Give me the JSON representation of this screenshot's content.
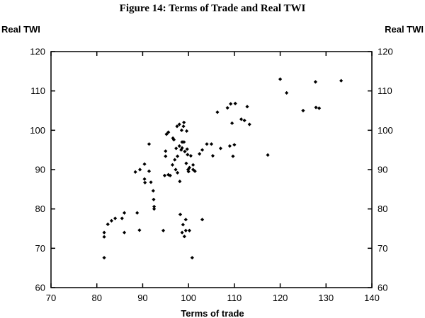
{
  "chart_data": {
    "type": "scatter",
    "title": "Figure 14: Terms of Trade and Real TWI",
    "xlabel": "Terms of trade",
    "ylabel_left": "Real TWI",
    "ylabel_right": "Real TWI",
    "xlim": [
      70,
      140
    ],
    "ylim": [
      60,
      120
    ],
    "xticks": [
      "70",
      "80",
      "90",
      "100",
      "110",
      "120",
      "130",
      "140"
    ],
    "yticks": [
      "120",
      "110",
      "100",
      "90",
      "80",
      "70",
      "60"
    ],
    "grid": false,
    "marker": "diamond",
    "point_color": "#000000",
    "points": [
      [
        81.6,
        67.6
      ],
      [
        81.6,
        72.9
      ],
      [
        81.6,
        74.0
      ],
      [
        82.4,
        76.1
      ],
      [
        83.2,
        77.0
      ],
      [
        84.0,
        77.6
      ],
      [
        85.5,
        77.6
      ],
      [
        86.0,
        79.0
      ],
      [
        86.0,
        74.0
      ],
      [
        88.4,
        89.4
      ],
      [
        88.8,
        79.0
      ],
      [
        89.3,
        74.6
      ],
      [
        89.4,
        90.0
      ],
      [
        90.4,
        91.4
      ],
      [
        90.4,
        87.6
      ],
      [
        90.5,
        86.7
      ],
      [
        91.4,
        89.6
      ],
      [
        91.4,
        96.5
      ],
      [
        91.8,
        86.8
      ],
      [
        92.3,
        84.6
      ],
      [
        92.4,
        82.4
      ],
      [
        92.5,
        80.6
      ],
      [
        92.5,
        80.0
      ],
      [
        94.5,
        74.5
      ],
      [
        94.8,
        88.5
      ],
      [
        95.0,
        93.4
      ],
      [
        95.0,
        94.7
      ],
      [
        95.2,
        99.0
      ],
      [
        95.6,
        99.5
      ],
      [
        95.6,
        88.7
      ],
      [
        96.0,
        88.5
      ],
      [
        96.5,
        91.2
      ],
      [
        96.6,
        98.0
      ],
      [
        96.8,
        97.6
      ],
      [
        97.0,
        92.5
      ],
      [
        97.2,
        90.0
      ],
      [
        97.3,
        95.4
      ],
      [
        97.5,
        101.0
      ],
      [
        97.6,
        89.2
      ],
      [
        97.6,
        93.4
      ],
      [
        98.0,
        101.5
      ],
      [
        98.0,
        96.0
      ],
      [
        98.1,
        87.0
      ],
      [
        98.2,
        78.6
      ],
      [
        98.4,
        95.0
      ],
      [
        98.5,
        100.0
      ],
      [
        98.6,
        97.0
      ],
      [
        98.6,
        95.5
      ],
      [
        98.6,
        74.0
      ],
      [
        98.8,
        76.0
      ],
      [
        98.9,
        101.0
      ],
      [
        99.0,
        102.0
      ],
      [
        99.0,
        97.0
      ],
      [
        99.1,
        73.0
      ],
      [
        99.2,
        94.6
      ],
      [
        99.4,
        74.5
      ],
      [
        99.4,
        77.3
      ],
      [
        99.5,
        91.6
      ],
      [
        99.6,
        99.8
      ],
      [
        99.7,
        95.2
      ],
      [
        99.8,
        93.8
      ],
      [
        99.9,
        90.0
      ],
      [
        100.0,
        89.5
      ],
      [
        100.2,
        74.5
      ],
      [
        100.2,
        90.5
      ],
      [
        100.5,
        93.5
      ],
      [
        100.8,
        67.6
      ],
      [
        101.0,
        91.2
      ],
      [
        101.0,
        90.0
      ],
      [
        101.4,
        89.6
      ],
      [
        102.4,
        94.0
      ],
      [
        103.0,
        95.0
      ],
      [
        103.0,
        77.3
      ],
      [
        104.0,
        96.5
      ],
      [
        105.0,
        96.5
      ],
      [
        105.3,
        93.5
      ],
      [
        106.3,
        104.6
      ],
      [
        107.0,
        95.4
      ],
      [
        108.5,
        105.7
      ],
      [
        109.0,
        96.0
      ],
      [
        109.2,
        106.7
      ],
      [
        109.5,
        101.8
      ],
      [
        109.7,
        93.4
      ],
      [
        110.0,
        96.3
      ],
      [
        110.2,
        106.8
      ],
      [
        111.5,
        102.8
      ],
      [
        112.2,
        102.5
      ],
      [
        112.8,
        106.0
      ],
      [
        113.3,
        101.5
      ],
      [
        117.3,
        93.7
      ],
      [
        120.0,
        113.0
      ],
      [
        121.4,
        109.5
      ],
      [
        125.0,
        105.0
      ],
      [
        127.7,
        112.3
      ],
      [
        127.8,
        105.8
      ],
      [
        128.5,
        105.6
      ],
      [
        133.3,
        112.6
      ]
    ]
  }
}
